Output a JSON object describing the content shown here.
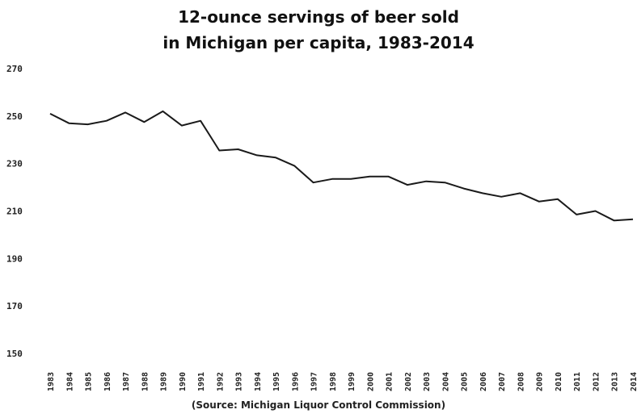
{
  "chart_data": {
    "type": "line",
    "title_line1": "12-ounce servings of beer sold",
    "title_line2": "in Michigan per capita, 1983-2014",
    "source": "(Source: Michigan Liquor Control Commission)",
    "xlabel": "",
    "ylabel": "",
    "ylim": [
      150,
      270
    ],
    "yticks": [
      150,
      170,
      190,
      210,
      230,
      250,
      270
    ],
    "x": [
      "1983",
      "1984",
      "1985",
      "1986",
      "1987",
      "1988",
      "1989",
      "1990",
      "1991",
      "1992",
      "1993",
      "1994",
      "1995",
      "1996",
      "1997",
      "1998",
      "1999",
      "2000",
      "2001",
      "2002",
      "2003",
      "2004",
      "2005",
      "2006",
      "2007",
      "2008",
      "2009",
      "2010",
      "2011",
      "2012",
      "2013",
      "2014"
    ],
    "series": [
      {
        "values": [
          251,
          247,
          246.5,
          248,
          251.5,
          247.5,
          252,
          246,
          248,
          235.5,
          236,
          233.5,
          232.5,
          229,
          222,
          223.5,
          223.5,
          224.5,
          224.5,
          221,
          222.5,
          222,
          219.5,
          217.5,
          216,
          217.5,
          214,
          215,
          208.5,
          210,
          206,
          206.5
        ]
      }
    ],
    "grid": false,
    "line_color": "#1a1a1a"
  }
}
